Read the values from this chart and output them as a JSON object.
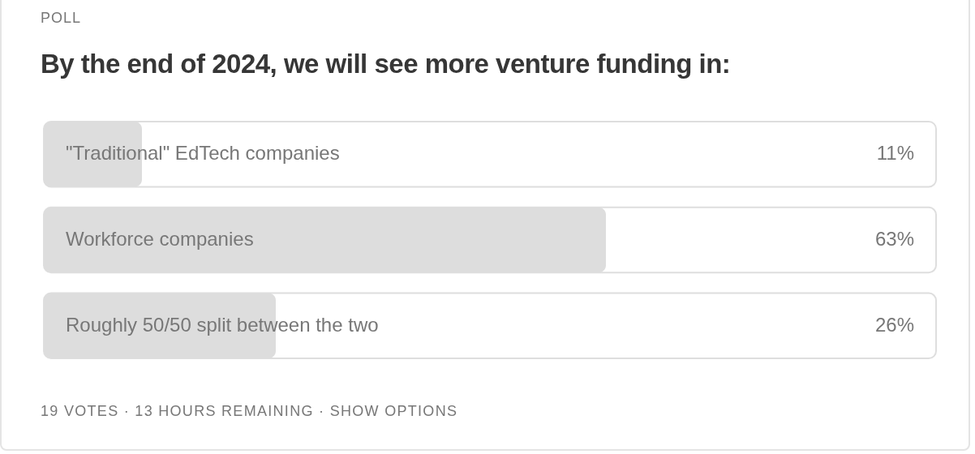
{
  "chart_data": {
    "type": "bar",
    "orientation": "horizontal",
    "subtitle": "POLL",
    "title": "By the end of 2024, we will see more venture funding in:",
    "categories": [
      "\"Traditional\" EdTech companies",
      "Workforce companies",
      "Roughly 50/50 split between the two"
    ],
    "values": [
      11,
      63,
      26
    ],
    "color": "#dddddd",
    "value_labels": [
      "11%",
      "63%",
      "26%"
    ],
    "xlim": [
      0,
      100
    ],
    "tick_labels": false,
    "annotations": [
      "19 VOTES · 13 HOURS REMAINING · SHOW OPTIONS"
    ]
  }
}
